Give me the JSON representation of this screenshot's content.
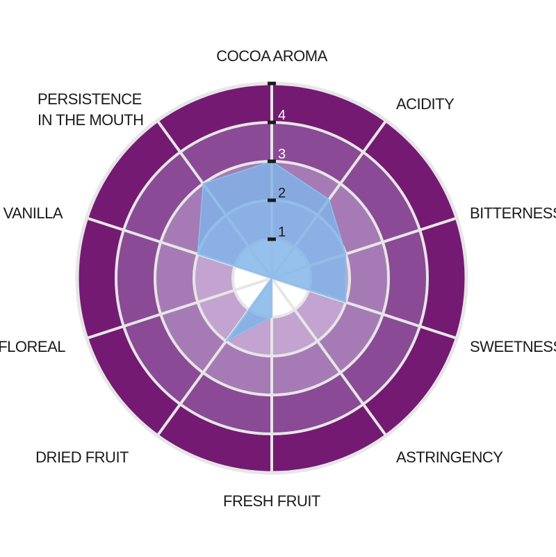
{
  "chart_data": {
    "type": "radar",
    "axes": [
      "COCOA AROMA",
      "ACIDITY",
      "BITTERNESS",
      "SWEETNESS",
      "ASTRINGENCY",
      "FRESH FRUIT",
      "DRIED FRUIT",
      "FLOREAL",
      "VANILLA",
      "PERSISTENCE IN THE MOUTH"
    ],
    "axis_label_lines": [
      [
        "COCOA AROMA"
      ],
      [
        "ACIDITY"
      ],
      [
        "BITTERNESS"
      ],
      [
        "SWEETNESS"
      ],
      [
        "ASTRINGENCY"
      ],
      [
        "FRESH FRUIT"
      ],
      [
        "DRIED FRUIT"
      ],
      [
        "FLOREAL"
      ],
      [
        "VANILLA"
      ],
      [
        "PERSISTENCE",
        "IN THE MOUTH"
      ]
    ],
    "values": [
      3,
      2.5,
      2,
      2,
      0,
      1,
      2,
      0,
      2,
      3
    ],
    "rlim": [
      0,
      5
    ],
    "rticks": [
      "1",
      "2",
      "3",
      "4",
      "5"
    ],
    "colors": {
      "band_colors": [
        "#ffffff",
        "#c3a3cf",
        "#a67bb5",
        "#8a4a95",
        "#741a72"
      ],
      "series_fill": "#7fb3e8",
      "grid": "#e6e6e6"
    }
  }
}
